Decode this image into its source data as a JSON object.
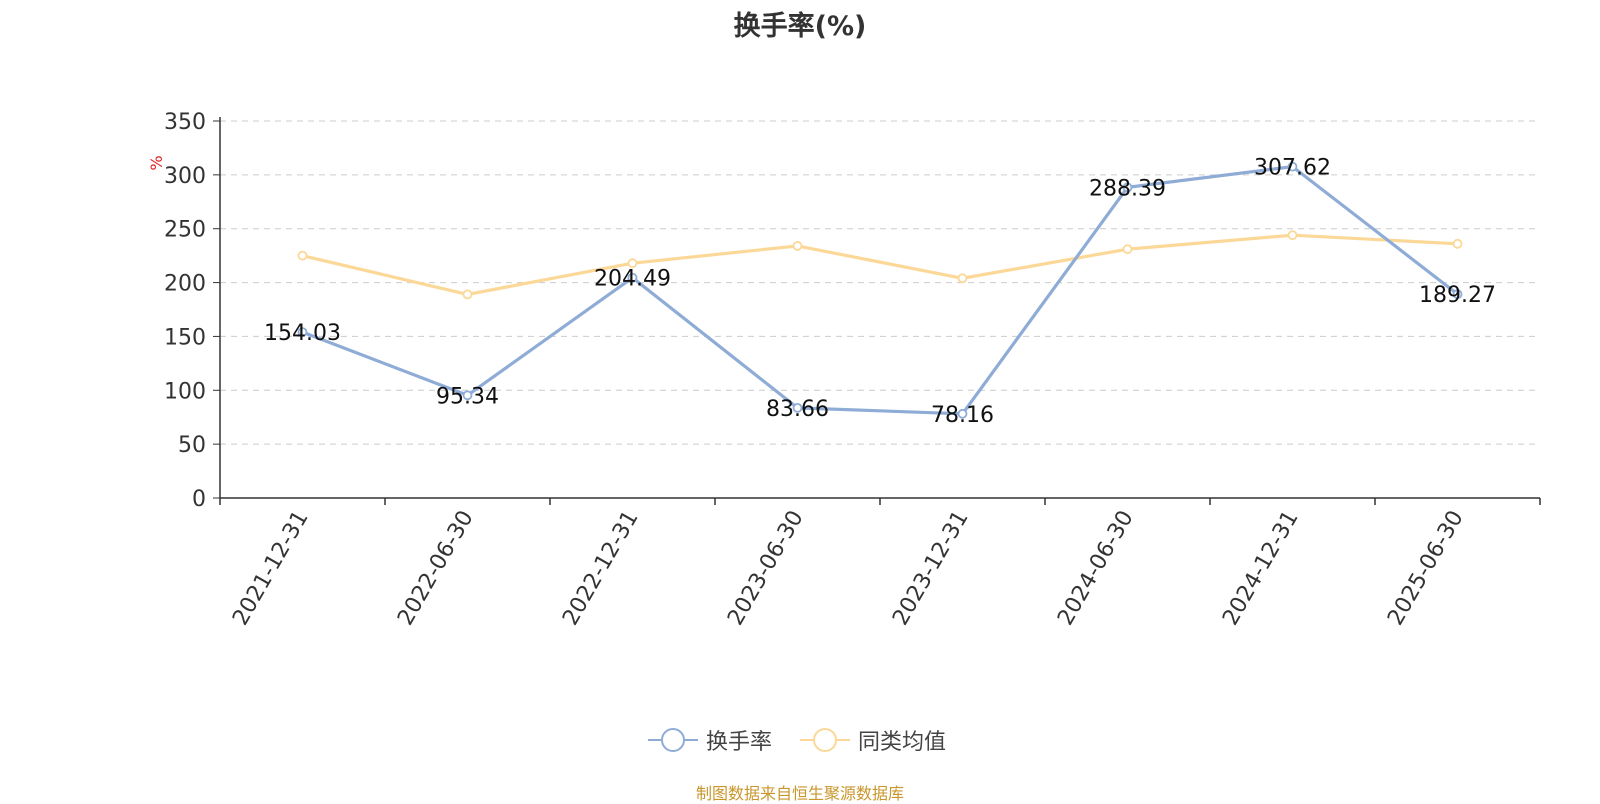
{
  "chart_data": {
    "type": "line",
    "title": "换手率(%)",
    "ylabel": "%",
    "xlabel": "",
    "categories": [
      "2021-12-31",
      "2022-06-30",
      "2022-12-31",
      "2023-06-30",
      "2023-12-31",
      "2024-06-30",
      "2024-12-31",
      "2025-06-30"
    ],
    "ylim": [
      0,
      350
    ],
    "yticks": [
      0,
      50,
      100,
      150,
      200,
      250,
      300,
      350
    ],
    "grid": true,
    "legend_position": "bottom",
    "series": [
      {
        "name": "换手率",
        "color": "#8eacd6",
        "values": [
          154.03,
          95.34,
          204.49,
          83.66,
          78.16,
          288.39,
          307.62,
          189.27
        ],
        "labels": [
          "154.03",
          "95.34",
          "204.49",
          "83.66",
          "78.16",
          "288.39",
          "307.62",
          "189.27"
        ]
      },
      {
        "name": "同类均值",
        "color": "#fbd898",
        "values": [
          225,
          189,
          218,
          234,
          204,
          231,
          244,
          236
        ]
      }
    ]
  },
  "footer": {
    "source": "制图数据来自恒生聚源数据库",
    "source_color": "#c8962c"
  },
  "colors": {
    "axis": "#333333",
    "grid": "#cccccc",
    "ylabel": "#e02020"
  }
}
